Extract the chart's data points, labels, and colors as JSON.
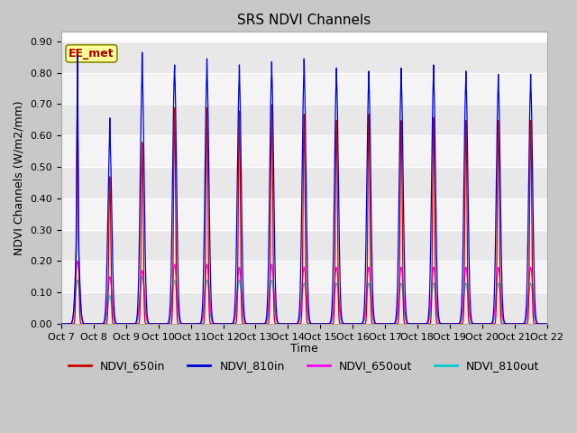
{
  "title": "SRS NDVI Channels",
  "ylabel": "NDVI Channels (W/m2/mm)",
  "xlabel": "Time",
  "ylim": [
    0.0,
    0.93
  ],
  "yticks": [
    0.0,
    0.1,
    0.2,
    0.3,
    0.4,
    0.5,
    0.6,
    0.7,
    0.8,
    0.9
  ],
  "xtick_labels": [
    "Oct 7",
    "Oct 8",
    "Oct 9",
    "Oct 10",
    "Oct 11",
    "Oct 12",
    "Oct 13",
    "Oct 14",
    "Oct 15",
    "Oct 16",
    "Oct 17",
    "Oct 18",
    "Oct 19",
    "Oct 20",
    "Oct 21",
    "Oct 22"
  ],
  "colors": {
    "NDVI_650in": "#cc0000",
    "NDVI_810in": "#0000dd",
    "NDVI_650out": "#ff00ff",
    "NDVI_810out": "#00cccc"
  },
  "fig_bg": "#c8c8c8",
  "plot_bg": "#ffffff",
  "band_colors": [
    "#e8e8e8",
    "#f4f4f4"
  ],
  "ee_met_label": "EE_met",
  "ee_met_color": "#aa0000",
  "ee_met_bg": "#ffff99",
  "ee_met_border": "#888800",
  "num_days": 15,
  "day_peaks_650in": [
    0.69,
    0.47,
    0.58,
    0.69,
    0.69,
    0.68,
    0.7,
    0.67,
    0.65,
    0.67,
    0.65,
    0.66,
    0.65,
    0.65,
    0.65
  ],
  "day_peaks_810in": [
    0.86,
    0.66,
    0.87,
    0.83,
    0.85,
    0.83,
    0.84,
    0.85,
    0.82,
    0.81,
    0.82,
    0.83,
    0.81,
    0.8,
    0.8
  ],
  "day_peaks_810in_secondary": [
    0.29,
    0.59,
    0.79,
    0.8,
    0.8,
    0.78,
    0.8,
    0.8,
    0.78,
    0.77,
    0.77,
    0.78,
    0.77,
    0.76,
    0.76
  ],
  "day_peaks_650out": [
    0.2,
    0.15,
    0.17,
    0.19,
    0.19,
    0.18,
    0.19,
    0.18,
    0.18,
    0.18,
    0.18,
    0.18,
    0.18,
    0.18,
    0.18
  ],
  "day_peaks_810out": [
    0.14,
    0.09,
    0.15,
    0.14,
    0.14,
    0.14,
    0.14,
    0.13,
    0.13,
    0.13,
    0.13,
    0.13,
    0.13,
    0.13,
    0.13
  ],
  "points_per_day": 200,
  "title_fontsize": 11,
  "tick_fontsize": 8,
  "ylabel_fontsize": 9,
  "legend_fontsize": 9
}
